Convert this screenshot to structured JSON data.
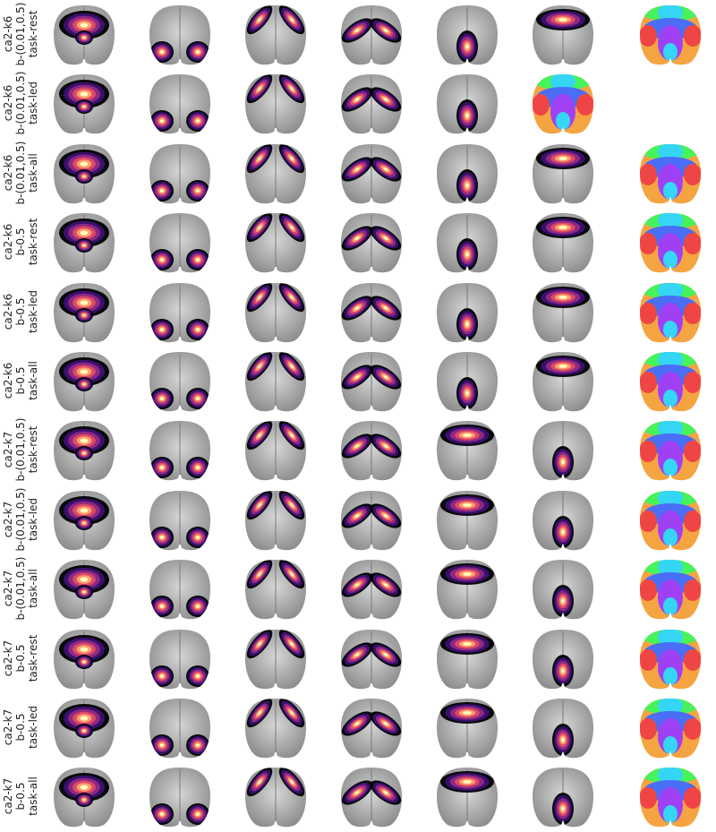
{
  "figure": {
    "rows": [
      {
        "lines": [
          "ca2-k6",
          "b-(0.01,0.5)",
          "task-rest"
        ],
        "panels": [
          "anterior",
          "posterior",
          "lateral-frontal",
          "lateral-diagonal",
          "central-posterior",
          "frontal-arc",
          "parcellation"
        ]
      },
      {
        "lines": [
          "ca2-k6",
          "b-(0.01,0.5)",
          "task-led"
        ],
        "panels": [
          "anterior",
          "posterior",
          "lateral-frontal",
          "lateral-diagonal",
          "central-posterior",
          "parcellation",
          "none"
        ]
      },
      {
        "lines": [
          "ca2-k6",
          "b-(0.01,0.5)",
          "task-all"
        ],
        "panels": [
          "anterior",
          "posterior",
          "lateral-frontal",
          "lateral-diagonal",
          "central-posterior",
          "frontal-arc",
          "parcellation"
        ]
      },
      {
        "lines": [
          "ca2-k6",
          "b-0.5",
          "task-rest"
        ],
        "panels": [
          "anterior",
          "posterior",
          "lateral-frontal",
          "lateral-diagonal",
          "central-posterior",
          "frontal-arc",
          "parcellation"
        ]
      },
      {
        "lines": [
          "ca2-k6",
          "b-0.5",
          "task-led"
        ],
        "panels": [
          "anterior",
          "posterior",
          "lateral-frontal",
          "lateral-diagonal",
          "central-posterior",
          "frontal-arc",
          "parcellation"
        ]
      },
      {
        "lines": [
          "ca2-k6",
          "b-0.5",
          "task-all"
        ],
        "panels": [
          "anterior",
          "posterior",
          "lateral-frontal",
          "lateral-diagonal",
          "central-posterior",
          "frontal-arc",
          "parcellation"
        ]
      },
      {
        "lines": [
          "ca2-k7",
          "b-(0.01,0.5)",
          "task-rest"
        ],
        "panels": [
          "anterior",
          "posterior",
          "lateral-frontal",
          "lateral-diagonal",
          "frontal-arc",
          "central-posterior",
          "parcellation"
        ]
      },
      {
        "lines": [
          "ca2-k7",
          "b-(0.01,0.5)",
          "task-led"
        ],
        "panels": [
          "anterior",
          "posterior",
          "lateral-frontal",
          "lateral-diagonal",
          "frontal-arc",
          "central-posterior",
          "parcellation"
        ]
      },
      {
        "lines": [
          "ca2-k7",
          "b-(0.01,0.5)",
          "task-all"
        ],
        "panels": [
          "anterior",
          "posterior",
          "lateral-frontal",
          "lateral-diagonal",
          "frontal-arc",
          "central-posterior",
          "parcellation"
        ]
      },
      {
        "lines": [
          "ca2-k7",
          "b-0.5",
          "task-rest"
        ],
        "panels": [
          "anterior",
          "posterior",
          "lateral-frontal",
          "lateral-diagonal",
          "frontal-arc",
          "central-posterior",
          "parcellation"
        ]
      },
      {
        "lines": [
          "ca2-k7",
          "b-0.5",
          "task-led"
        ],
        "panels": [
          "anterior",
          "posterior",
          "lateral-frontal",
          "lateral-diagonal",
          "frontal-arc",
          "central-posterior",
          "parcellation"
        ]
      },
      {
        "lines": [
          "ca2-k7",
          "b-0.5",
          "task-all"
        ],
        "panels": [
          "anterior",
          "posterior",
          "lateral-frontal",
          "lateral-diagonal",
          "frontal-arc",
          "central-posterior",
          "parcellation"
        ]
      }
    ],
    "colors": {
      "background": "#ffffff",
      "brain_dark": "#8c8c8c",
      "brain_light": "#d6d6d6",
      "heat": [
        "#fcfdbf",
        "#fe9f6d",
        "#de4968",
        "#8c2981",
        "#3b0f70",
        "#000004"
      ],
      "parcels": [
        "#47f25a",
        "#35d6f5",
        "#4a6ef5",
        "#a040f5",
        "#f04545",
        "#f5a442"
      ]
    }
  }
}
